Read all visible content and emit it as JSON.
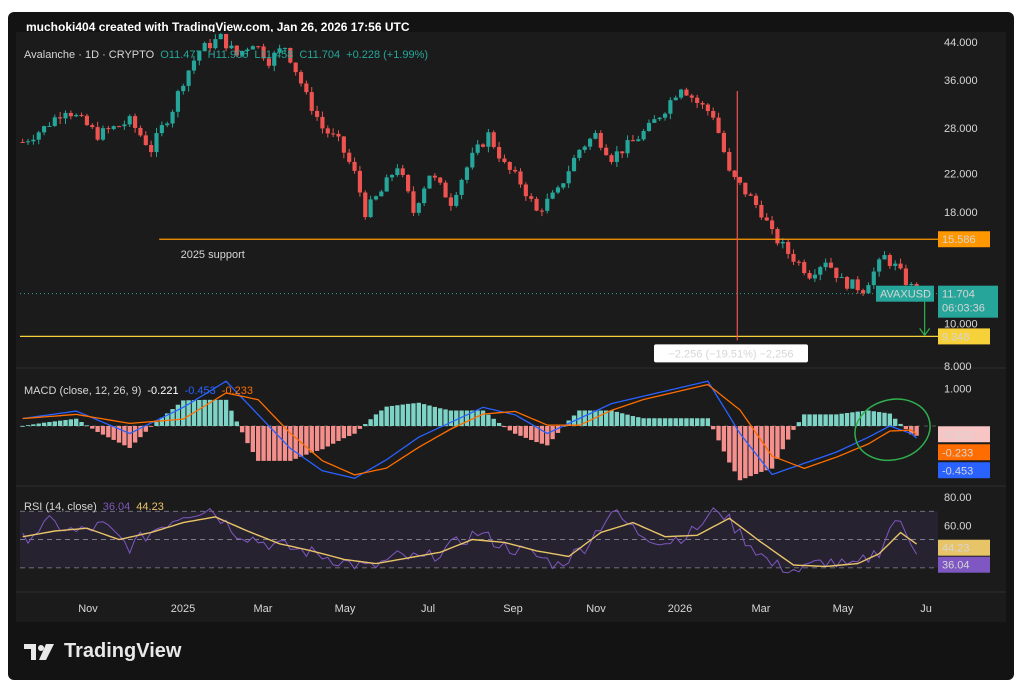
{
  "header": {
    "text": "muchoki404 created with TradingView.com, Jan 26, 2026 17:56 UTC"
  },
  "brand": {
    "name": "TradingView",
    "icon": "tradingview-logo-icon"
  },
  "legend": {
    "symbol": "Avalanche · 1D · CRYPTO",
    "open": "O11.477",
    "high": "H11.906",
    "low": "L11.458",
    "close": "C11.704",
    "change": "+0.228 (+1.99%)"
  },
  "colors": {
    "up": "#26a69a",
    "down": "#ef5350",
    "orange": "#ff9800",
    "yellow": "#f7d13a",
    "macd": "#2962ff",
    "signal": "#ff6d00",
    "rsi": "#7e57c2",
    "rsima": "#e8c468",
    "green_note": "#2fae4e"
  },
  "chart_data": [
    {
      "type": "candlestick",
      "title": "Avalanche · 1D · CRYPTO",
      "ylim": [
        8,
        44
      ],
      "yscale": "log",
      "y_ticks": [
        "44.000",
        "36.000",
        "28.000",
        "22.000",
        "18.000",
        "10.000",
        "8.000"
      ],
      "x_ticks": [
        "Nov",
        "2025",
        "Mar",
        "May",
        "Jul",
        "Sep",
        "Nov",
        "2026",
        "Mar",
        "May",
        "Ju"
      ],
      "close_path": [
        [
          0,
          26
        ],
        [
          4,
          28
        ],
        [
          8,
          31
        ],
        [
          14,
          27
        ],
        [
          20,
          29
        ],
        [
          24,
          25
        ],
        [
          28,
          31
        ],
        [
          30,
          36
        ],
        [
          33,
          42
        ],
        [
          37,
          45
        ],
        [
          40,
          41
        ],
        [
          43,
          44
        ],
        [
          46,
          40
        ],
        [
          49,
          43
        ],
        [
          53,
          33
        ],
        [
          56,
          28
        ],
        [
          59,
          26
        ],
        [
          62,
          22
        ],
        [
          64,
          18
        ],
        [
          67,
          20
        ],
        [
          70,
          23
        ],
        [
          73,
          18
        ],
        [
          76,
          22
        ],
        [
          80,
          19
        ],
        [
          84,
          24
        ],
        [
          87,
          27
        ],
        [
          90,
          23
        ],
        [
          93,
          21
        ],
        [
          96,
          18
        ],
        [
          100,
          20
        ],
        [
          104,
          25
        ],
        [
          107,
          27
        ],
        [
          110,
          24
        ],
        [
          114,
          26
        ],
        [
          117,
          28
        ],
        [
          120,
          31
        ],
        [
          123,
          35
        ],
        [
          126,
          32
        ],
        [
          129,
          30
        ],
        [
          132,
          22
        ],
        [
          135,
          20
        ],
        [
          138,
          18
        ],
        [
          140,
          16
        ],
        [
          143,
          14.5
        ],
        [
          147,
          13
        ],
        [
          150,
          14
        ],
        [
          153,
          12.5
        ],
        [
          157,
          12.0
        ],
        [
          161,
          14.2
        ],
        [
          163,
          13.5
        ],
        [
          165,
          12.5
        ],
        [
          167,
          11.7
        ]
      ],
      "support_label": "2025 support",
      "levels": [
        {
          "value": 15.586,
          "label": "15.586",
          "color": "#ff9800"
        },
        {
          "value": 9.348,
          "label": "9.348",
          "color": "#f7d13a"
        }
      ],
      "last_price": {
        "symbol": "AVAXUSD",
        "value": "11.704",
        "countdown": "06:03:36"
      },
      "measure_label": "−2.256 (−19.51%) −2,256"
    },
    {
      "type": "bar",
      "title": "MACD (close, 12, 26, 9)",
      "values_text": [
        "-0.221",
        "-0.453",
        "-0.233"
      ],
      "ylim": [
        -1.5,
        1.5
      ],
      "y_ticks": [
        "1.000"
      ],
      "badges": [
        "-0.221",
        "-0.233",
        "-0.453"
      ]
    },
    {
      "type": "line",
      "title": "RSI (14, close)",
      "values_text": [
        "36.04",
        "44.23"
      ],
      "ylim": [
        20,
        85
      ],
      "y_ticks": [
        "80.00",
        "60.00"
      ],
      "bands": [
        70,
        50,
        30
      ],
      "badges": [
        "44.23",
        "36.04"
      ],
      "rsi_path": [
        [
          0,
          50
        ],
        [
          5,
          62
        ],
        [
          10,
          55
        ],
        [
          15,
          60
        ],
        [
          20,
          45
        ],
        [
          25,
          58
        ],
        [
          30,
          68
        ],
        [
          35,
          72
        ],
        [
          40,
          55
        ],
        [
          45,
          48
        ],
        [
          50,
          44
        ],
        [
          55,
          40
        ],
        [
          60,
          34
        ],
        [
          65,
          30
        ],
        [
          70,
          38
        ],
        [
          75,
          36
        ],
        [
          80,
          45
        ],
        [
          85,
          55
        ],
        [
          90,
          45
        ],
        [
          95,
          40
        ],
        [
          100,
          32
        ],
        [
          105,
          45
        ],
        [
          110,
          70
        ],
        [
          115,
          55
        ],
        [
          120,
          48
        ],
        [
          125,
          55
        ],
        [
          130,
          72
        ],
        [
          135,
          50
        ],
        [
          140,
          32
        ],
        [
          145,
          28
        ],
        [
          150,
          35
        ],
        [
          155,
          30
        ],
        [
          160,
          42
        ],
        [
          163,
          65
        ],
        [
          166,
          48
        ],
        [
          168,
          38
        ]
      ],
      "rsima_path": [
        [
          0,
          52
        ],
        [
          6,
          56
        ],
        [
          12,
          58
        ],
        [
          18,
          50
        ],
        [
          24,
          55
        ],
        [
          30,
          62
        ],
        [
          36,
          66
        ],
        [
          42,
          56
        ],
        [
          48,
          47
        ],
        [
          54,
          42
        ],
        [
          60,
          36
        ],
        [
          66,
          33
        ],
        [
          72,
          37
        ],
        [
          78,
          41
        ],
        [
          84,
          50
        ],
        [
          90,
          48
        ],
        [
          96,
          42
        ],
        [
          102,
          38
        ],
        [
          108,
          55
        ],
        [
          114,
          62
        ],
        [
          120,
          52
        ],
        [
          126,
          53
        ],
        [
          132,
          65
        ],
        [
          138,
          48
        ],
        [
          144,
          32
        ],
        [
          150,
          31
        ],
        [
          156,
          33
        ],
        [
          160,
          40
        ],
        [
          164,
          55
        ],
        [
          168,
          44
        ]
      ]
    }
  ]
}
